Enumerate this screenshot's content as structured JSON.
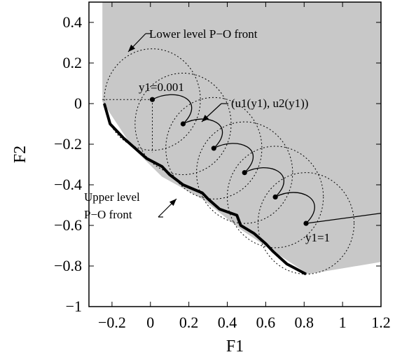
{
  "chart_data": {
    "type": "line",
    "xlabel": "F1",
    "ylabel": "F2",
    "xlim": [
      -0.32,
      1.2
    ],
    "ylim": [
      -1.0,
      0.5
    ],
    "x_ticks": [
      -0.2,
      0,
      0.2,
      0.4,
      0.6,
      0.8,
      1,
      1.2
    ],
    "x_tick_labels": [
      "−0.2",
      "0",
      "0.2",
      "0.4",
      "0.6",
      "0.8",
      "1",
      "1.2"
    ],
    "y_ticks": [
      0.4,
      0.2,
      0,
      -0.2,
      -0.4,
      -0.6,
      -0.8,
      -1
    ],
    "y_tick_labels": [
      "0.4",
      "0.2",
      "0",
      "−0.2",
      "−0.4",
      "−0.6",
      "−0.8",
      "−1"
    ],
    "grid": false,
    "colors": {
      "feasible_region": "#c8c8c8",
      "lines": "#000000"
    },
    "feasible_region_polygon": [
      [
        -0.25,
        0.5
      ],
      [
        1.2,
        0.5
      ],
      [
        1.2,
        -0.78
      ],
      [
        0.82,
        -0.84
      ],
      [
        0.47,
        -0.62
      ],
      [
        0.27,
        -0.47
      ],
      [
        0.06,
        -0.36
      ],
      [
        -0.09,
        -0.22
      ],
      [
        -0.25,
        0.01
      ]
    ],
    "lower_level_points": [
      {
        "x": 0.01,
        "y": 0.02
      },
      {
        "x": 0.17,
        "y": -0.1
      },
      {
        "x": 0.33,
        "y": -0.22
      },
      {
        "x": 0.49,
        "y": -0.34
      },
      {
        "x": 0.65,
        "y": -0.46
      },
      {
        "x": 0.81,
        "y": -0.59
      }
    ],
    "lower_level_front_radius": 0.25,
    "reference_lines": [
      {
        "from": [
          -0.25,
          0.02
        ],
        "to": [
          0.01,
          0.02
        ],
        "style": "dotted"
      },
      {
        "from": [
          0.01,
          0.02
        ],
        "to": [
          0.01,
          -0.24
        ],
        "style": "dotted"
      }
    ],
    "extension_line": {
      "from": [
        0.81,
        -0.59
      ],
      "to": [
        1.2,
        -0.54
      ]
    },
    "upper_level_front": [
      [
        -0.24,
        0.0
      ],
      [
        -0.21,
        -0.1
      ],
      [
        -0.14,
        -0.17
      ],
      [
        -0.08,
        -0.22
      ],
      [
        -0.02,
        -0.27
      ],
      [
        0.06,
        -0.31
      ],
      [
        0.1,
        -0.35
      ],
      [
        0.17,
        -0.4
      ],
      [
        0.27,
        -0.44
      ],
      [
        0.3,
        -0.47
      ],
      [
        0.36,
        -0.52
      ],
      [
        0.45,
        -0.55
      ],
      [
        0.47,
        -0.6
      ],
      [
        0.54,
        -0.64
      ],
      [
        0.6,
        -0.69
      ],
      [
        0.64,
        -0.73
      ],
      [
        0.71,
        -0.79
      ],
      [
        0.81,
        -0.84
      ]
    ],
    "annotations": {
      "lower_front": "Lower level P−O front",
      "y1_start": "y1=0.001",
      "mapping": "(u1(y1), u2(y1))",
      "upper_front_line1": "Upper level",
      "upper_front_line2": "P−O  front",
      "y1_end": "y1=1"
    }
  }
}
